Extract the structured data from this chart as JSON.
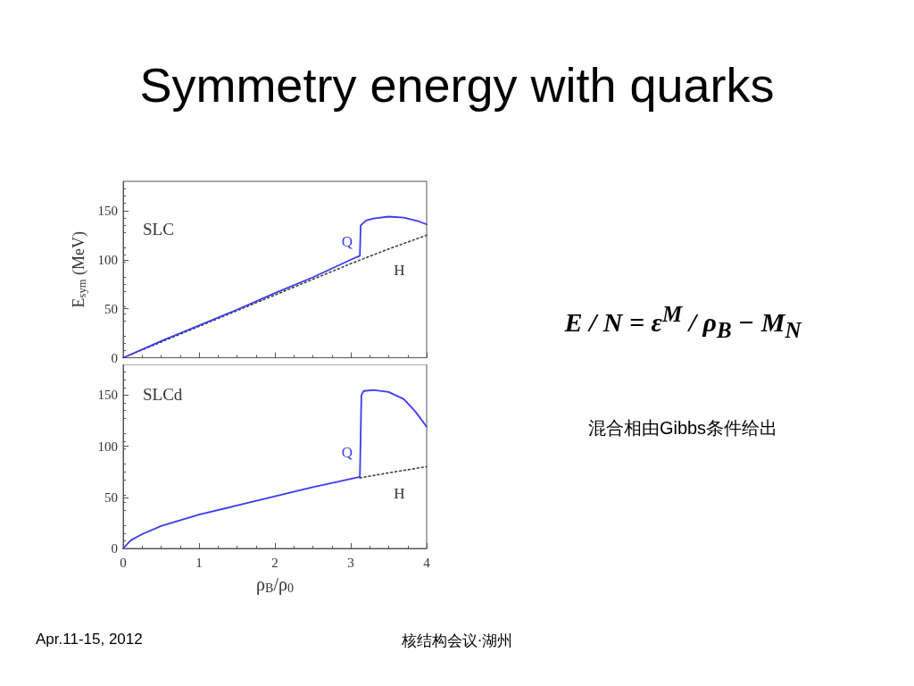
{
  "chart_data": [
    {
      "type": "line",
      "title": "Symmetry energy with quarks",
      "ylabel": "E$_{sym}$ (MeV)",
      "annotations": [
        "SLC",
        "E / N = ε$^{M}$ / ρ$_{B}$ − M$_{N}$",
        "混合相由Gibbs条件给出",
        "Apr.11-15, 2012",
        "核结构会议·湖州"
      ],
      "xlim": [
        0,
        4
      ],
      "xticks": [
        0,
        1,
        2,
        3,
        4
      ],
      "ylim": [
        0,
        180
      ],
      "yticks": [
        0,
        50,
        100,
        150
      ],
      "tick_labels": "y",
      "grid": false,
      "legend": false,
      "series": [
        {
          "name": "Q",
          "color": "#3b3bf0",
          "line_style": "solid",
          "x": [
            0,
            0.5,
            1,
            1.5,
            2,
            2.5,
            3,
            3.12,
            3.13,
            3.2,
            3.3,
            3.5,
            3.7,
            3.9,
            4
          ],
          "values": [
            0,
            17,
            33,
            49,
            66,
            82,
            100,
            104,
            135,
            140,
            142,
            144,
            143,
            139,
            136
          ]
        },
        {
          "name": "H",
          "color": "#333333",
          "line_style": "dotted",
          "x": [
            0,
            0.5,
            1,
            1.5,
            2,
            2.5,
            3,
            3.5,
            4
          ],
          "values": [
            0,
            16,
            32,
            48,
            64,
            80,
            96,
            111,
            125
          ]
        }
      ]
    },
    {
      "type": "line",
      "xlabel": "ρ$_{B}$/ρ$_{0}$",
      "annotations": [
        "SLCd"
      ],
      "xlim": [
        0,
        4
      ],
      "xticks": [
        0,
        1,
        2,
        3,
        4
      ],
      "ylim": [
        0,
        180
      ],
      "yticks": [
        0,
        50,
        100,
        150
      ],
      "grid": false,
      "legend": false,
      "series": [
        {
          "name": "Q",
          "color": "#3b3bf0",
          "line_style": "solid",
          "x": [
            0,
            0.1,
            0.25,
            0.5,
            1,
            1.5,
            2,
            2.5,
            3,
            3.12,
            3.13,
            3.14,
            3.17,
            3.3,
            3.5,
            3.7,
            3.85,
            4
          ],
          "values": [
            0,
            8,
            14,
            22,
            33,
            42,
            51,
            60,
            68,
            70,
            110,
            150,
            154,
            155,
            153,
            146,
            134,
            119
          ]
        },
        {
          "name": "H",
          "color": "#333333",
          "line_style": "dotted",
          "x": [
            3.12,
            3.5,
            4
          ],
          "values": [
            69,
            74,
            80
          ]
        }
      ]
    }
  ]
}
